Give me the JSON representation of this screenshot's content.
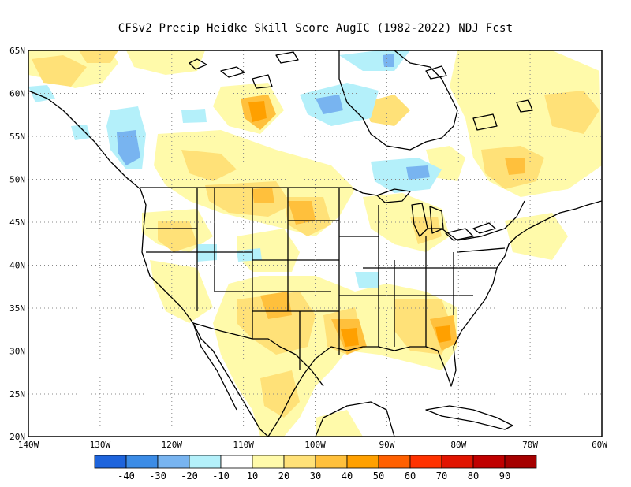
{
  "title": "CFSv2 Precip Heidke Skill Score AugIC (1982-2022) NDJ Fcst",
  "lat_labels": [
    "65N",
    "60N",
    "55N",
    "50N",
    "45N",
    "40N",
    "35N",
    "30N",
    "25N",
    "20N"
  ],
  "lon_labels": [
    "140W",
    "130W",
    "120W",
    "110W",
    "100W",
    "90W",
    "80W",
    "70W",
    "60W"
  ],
  "colorbar": {
    "colors": [
      "#1e64dc",
      "#3c8ce6",
      "#78b4f0",
      "#b4f0fa",
      "#ffffff",
      "#fffaaa",
      "#ffe178",
      "#ffc03c",
      "#ffa000",
      "#ff6000",
      "#ff3200",
      "#e11400",
      "#c00000",
      "#a50000"
    ],
    "labels": [
      "-40",
      "-30",
      "-20",
      "-10",
      "10",
      "20",
      "30",
      "40",
      "50",
      "60",
      "70",
      "80",
      "90"
    ]
  },
  "colors": {
    "light_yellow": "#fffaaa",
    "yellow": "#ffe178",
    "orange": "#ffc03c",
    "dark_orange": "#ffa000",
    "red_orange": "#ff6000",
    "light_blue": "#b4f0fa",
    "blue": "#78b4f0",
    "mid_blue": "#3c8ce6"
  }
}
